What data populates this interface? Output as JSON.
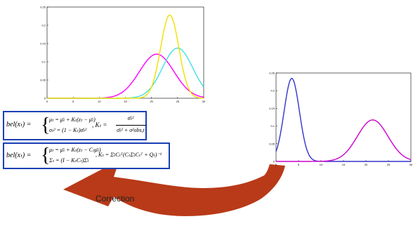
{
  "chart_data": [
    {
      "type": "line",
      "x_ticks": [
        "0",
        "5",
        "10",
        "15",
        "20",
        "25",
        "30"
      ],
      "y_ticks": [
        "0",
        "0.05",
        "0.1",
        "0.15",
        "0.2",
        "0.25"
      ],
      "xlim": [
        0,
        30
      ],
      "ylim": [
        0,
        0.25
      ],
      "series": [
        {
          "color": "#ff00ff",
          "mean": 21,
          "sd": 3.3
        },
        {
          "color": "#44e0e0",
          "mean": 25,
          "sd": 2.9
        },
        {
          "color": "#f0e000",
          "mean": 23.5,
          "sd": 1.75
        }
      ]
    },
    {
      "type": "line",
      "x_ticks": [
        "0",
        "5",
        "10",
        "15",
        "20",
        "25",
        "30"
      ],
      "y_ticks": [
        "0",
        "0.05",
        "0.1",
        "0.15",
        "0.2",
        "0.25"
      ],
      "xlim": [
        0,
        30
      ],
      "ylim": [
        0,
        0.25
      ],
      "series": [
        {
          "color": "#3333cc",
          "mean": 3.5,
          "sd": 1.7
        },
        {
          "color": "#cc00cc",
          "mean": 21.5,
          "sd": 3.4
        }
      ]
    }
  ],
  "equations": {
    "kalman": {
      "lhs": "bel(xₜ) =",
      "line1": "μₜ = μ̄ₜ + Kₜ(zₜ − μ̄ₜ)",
      "line2": "σₜ² = (1 − Kₜ)σ̄ₜ²",
      "k_label": ", Kₜ =",
      "k_num": "σ̄ₜ²",
      "k_den": "σ̄ₜ² + σ²obs,t"
    },
    "general": {
      "lhs": "bel(xₜ) =",
      "line1": "μₜ = μ̄ₜ + Kₜ(zₜ − Cₜμ̄ₜ)",
      "line2": "Σₜ = (I − KₜCₜ)Σ̄ₜ",
      "k_text": ", Kₜ = Σ̄ₜCₜᵀ(CₜΣ̄ₜCₜᵀ + Qₜ)⁻¹"
    }
  },
  "arrow": {
    "label": "Correction",
    "color": "#b83a18"
  }
}
